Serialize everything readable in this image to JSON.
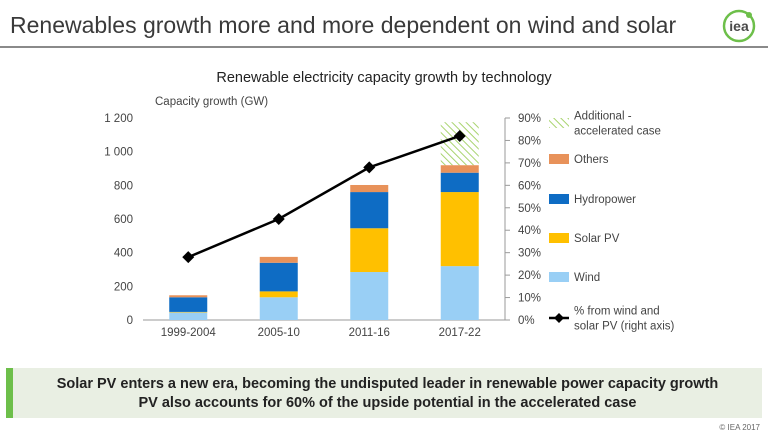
{
  "slide": {
    "title": "Renewables growth more and more dependent on wind and solar",
    "logo_text": "iea",
    "callout_line1": "Solar PV enters a new era, becoming the undisputed leader in renewable power capacity growth",
    "callout_line2": "PV also accounts for 60% of the upside potential in the accelerated case",
    "copyright": "© IEA 2017"
  },
  "chart_data": {
    "type": "bar",
    "stacked": true,
    "title": "Renewable electricity capacity growth by technology",
    "ylabel": "Capacity growth (GW)",
    "categories": [
      "1999-2004",
      "2005-10",
      "2011-16",
      "2017-22"
    ],
    "ylim": [
      0,
      1200
    ],
    "yticks": [
      0,
      200,
      400,
      600,
      800,
      1000,
      1200
    ],
    "ytick_labels": [
      "0",
      "200",
      "400",
      "600",
      "800",
      "1 000",
      "1 200"
    ],
    "y2lim": [
      0,
      0.9
    ],
    "y2ticks": [
      0,
      0.1,
      0.2,
      0.3,
      0.4,
      0.5,
      0.6,
      0.7,
      0.8,
      0.9
    ],
    "y2tick_labels": [
      "0%",
      "10%",
      "20%",
      "30%",
      "40%",
      "50%",
      "60%",
      "70%",
      "80%",
      "90%"
    ],
    "series": [
      {
        "name": "Wind",
        "color": "#99cff5",
        "values": [
          45,
          135,
          285,
          320
        ]
      },
      {
        "name": "Solar PV",
        "color": "#ffc000",
        "values": [
          3,
          35,
          260,
          440
        ]
      },
      {
        "name": "Hydropower",
        "color": "#0e6cc4",
        "values": [
          87,
          170,
          215,
          115
        ]
      },
      {
        "name": "Others",
        "color": "#e8925a",
        "values": [
          12,
          35,
          42,
          45
        ]
      },
      {
        "name": "Additional - accelerated case",
        "color": "#a9d46f",
        "pattern": "hatch",
        "values": [
          0,
          0,
          0,
          255
        ]
      }
    ],
    "line_series": {
      "name": "% from wind and solar PV (right axis)",
      "axis": "right",
      "color": "#000000",
      "values": [
        0.28,
        0.45,
        0.68,
        0.82
      ]
    },
    "legend": [
      {
        "label": "Additional - accelerated case",
        "lines": [
          "Additional -",
          "accelerated case"
        ],
        "series": 4
      },
      {
        "label": "Others",
        "lines": [
          "Others"
        ],
        "series": 3
      },
      {
        "label": "Hydropower",
        "lines": [
          "Hydropower"
        ],
        "series": 2
      },
      {
        "label": "Solar PV",
        "lines": [
          "Solar PV"
        ],
        "series": 1
      },
      {
        "label": "Wind",
        "lines": [
          "Wind"
        ],
        "series": 0
      },
      {
        "label": "% from wind and solar PV (right axis)",
        "lines": [
          "%  from wind and",
          "solar PV (right axis)"
        ],
        "line": true
      }
    ],
    "legend_position": "right"
  }
}
